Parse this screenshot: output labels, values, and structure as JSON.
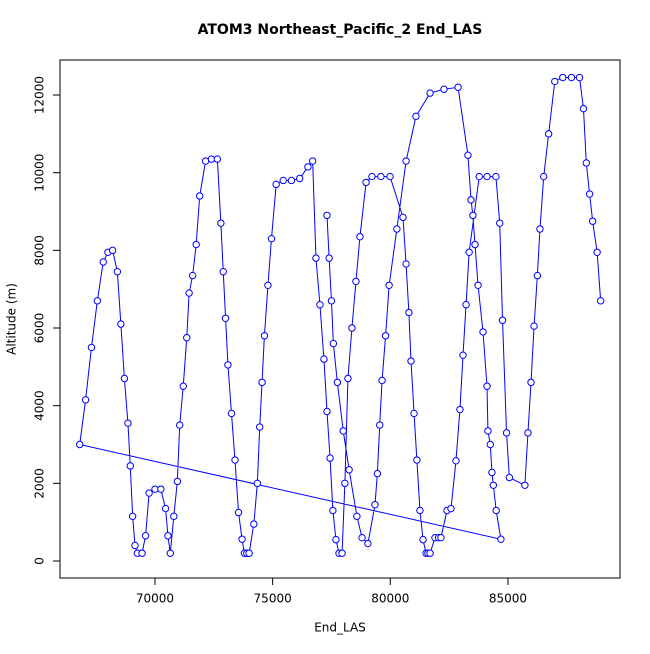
{
  "chart_data": {
    "type": "line",
    "title": "ATOM3 Northeast_Pacific_2 End_LAS",
    "x_label": "End_LAS",
    "y_label": "Altitude (m)",
    "x": [
      77310,
      77400,
      77500,
      77580,
      77750,
      78000,
      78250,
      78580,
      78800,
      79050,
      79350,
      79450,
      79550,
      79650,
      79800,
      79950,
      80280,
      80670,
      81090,
      81690,
      82280,
      82880,
      83300,
      83430,
      83510,
      83600,
      83730,
      83940,
      84110,
      84150,
      84250,
      84320,
      84380,
      84500,
      84700,
      66800,
      67050,
      67300,
      67550,
      67800,
      68000,
      68200,
      68400,
      68550,
      68700,
      68850,
      68950,
      69050,
      69150,
      69250,
      69450,
      69600,
      69750,
      70000,
      70250,
      70450,
      70550,
      70650,
      70800,
      70950,
      71050,
      71200,
      71350,
      71450,
      71600,
      71750,
      71900,
      72150,
      72400,
      72650,
      72800,
      72900,
      73000,
      73100,
      73250,
      73400,
      73550,
      73700,
      73800,
      73900,
      74000,
      74200,
      74350,
      74450,
      74550,
      74650,
      74800,
      74950,
      75150,
      75450,
      75800,
      76150,
      76500,
      76700,
      76840,
      77010,
      77180,
      77310,
      77440,
      77560,
      77690,
      77820,
      77950,
      78070,
      78200,
      78370,
      78540,
      78710,
      78970,
      79220,
      79600,
      79990,
      80540,
      80670,
      80790,
      80880,
      81010,
      81130,
      81260,
      81390,
      81520,
      81600,
      81690,
      81900,
      82050,
      82150,
      82410,
      82580,
      82790,
      82960,
      83090,
      83220,
      83350,
      83780,
      84110,
      84490,
      84650,
      84770,
      84940,
      85060,
      85720,
      85850,
      85980,
      86110,
      86250,
      86360,
      86520,
      86730,
      86990,
      87330,
      87700,
      88040,
      88210,
      88330,
      88470,
      88600,
      88790,
      88940
    ],
    "series": [
      {
        "color": "#0000ff",
        "marker": "circle",
        "values": [
          8900,
          7800,
          6700,
          5600,
          4600,
          3350,
          2350,
          1150,
          600,
          450,
          1450,
          2250,
          3500,
          4650,
          5800,
          7100,
          8550,
          10300,
          11450,
          12050,
          12150,
          12200,
          10450,
          9300,
          8900,
          8150,
          7100,
          5900,
          4500,
          3350,
          3000,
          2280,
          1950,
          1300,
          560,
          3000,
          4150,
          5500,
          6700,
          7700,
          7950,
          8000,
          7450,
          6100,
          4700,
          3550,
          2450,
          1150,
          400,
          200,
          200,
          650,
          1750,
          1850,
          1850,
          1350,
          650,
          200,
          1150,
          2050,
          3500,
          4500,
          5750,
          6900,
          7350,
          8150,
          9400,
          10300,
          10350,
          10350,
          8700,
          7450,
          6250,
          5050,
          3800,
          2600,
          1250,
          560,
          200,
          200,
          200,
          950,
          2000,
          3450,
          4600,
          5800,
          7100,
          8300,
          9700,
          9800,
          9800,
          9850,
          10150,
          10300,
          7800,
          6600,
          5200,
          3850,
          2650,
          1300,
          550,
          200,
          200,
          2000,
          4700,
          6000,
          7200,
          8350,
          9750,
          9900,
          9900,
          9900,
          8850,
          7650,
          6400,
          5150,
          3800,
          2600,
          1300,
          550,
          200,
          200,
          200,
          600,
          600,
          600,
          1300,
          1350,
          2580,
          3900,
          5300,
          6600,
          7950,
          9900,
          9900,
          9900,
          8700,
          6200,
          3300,
          2150,
          1950,
          3300,
          4600,
          6050,
          7350,
          8550,
          9900,
          11000,
          12350,
          12450,
          12450,
          12450,
          11650,
          10250,
          9450,
          8750,
          7950,
          6700
        ]
      }
    ],
    "xlim": [
      65963,
      89762
    ],
    "ylim": [
      -438,
      12902
    ],
    "xticks": [
      70000,
      75000,
      80000,
      85000
    ],
    "yticks": [
      0,
      2000,
      4000,
      6000,
      8000,
      10000,
      12000
    ],
    "grid": false
  }
}
